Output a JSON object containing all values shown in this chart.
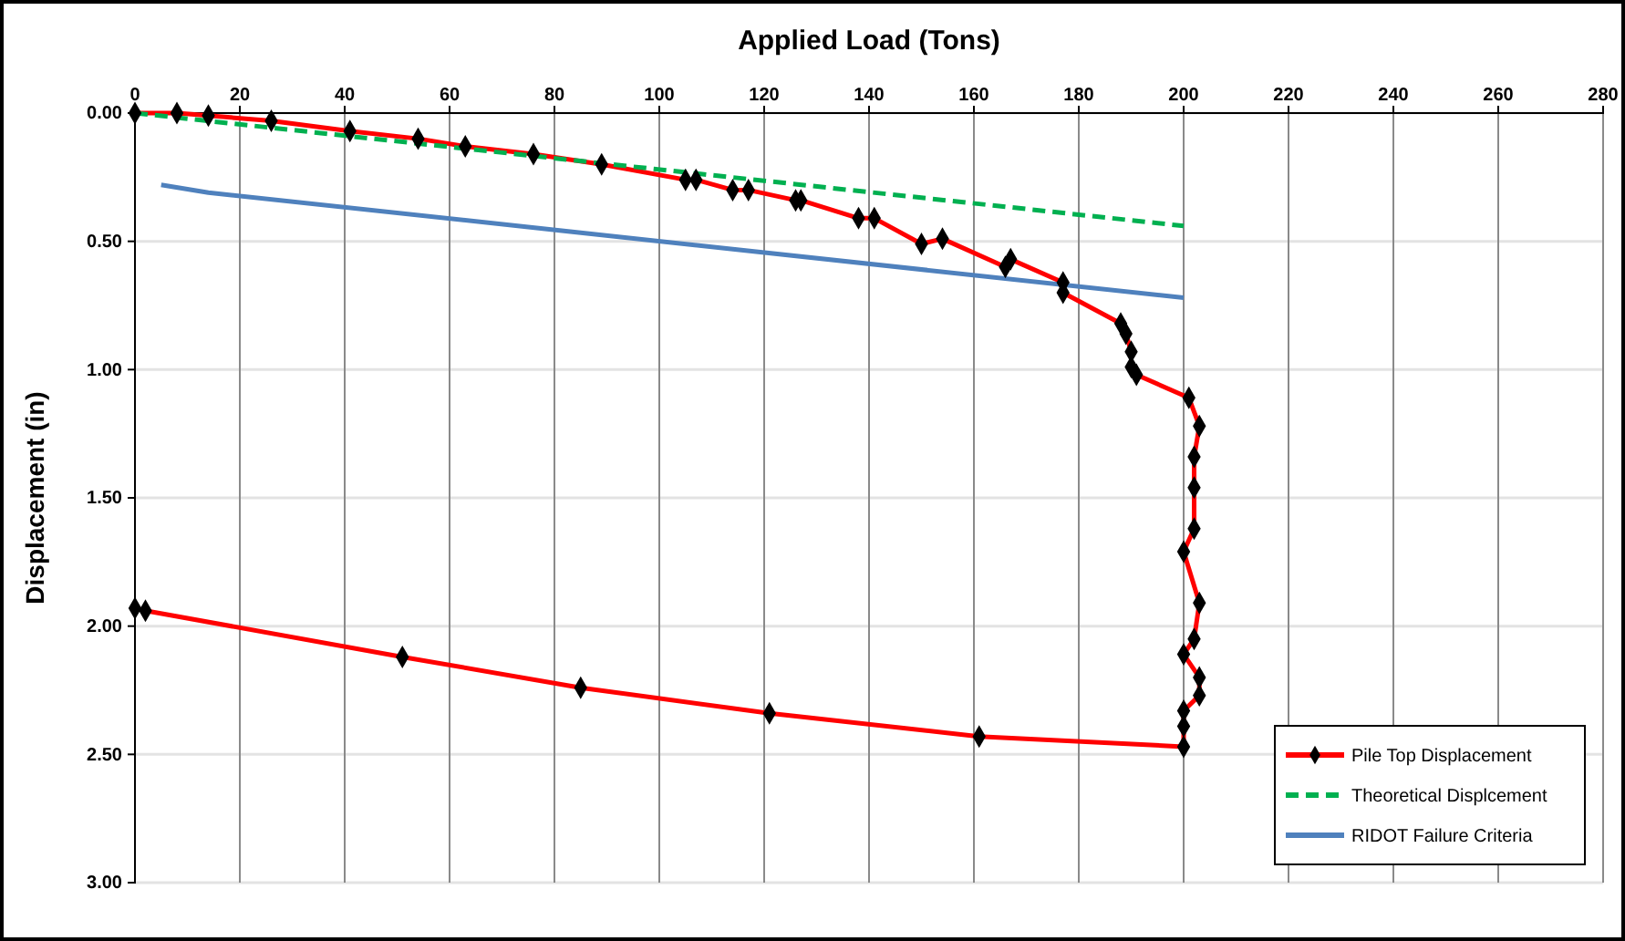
{
  "chart_data": {
    "type": "line",
    "xlabel": "Applied Load (Tons)",
    "ylabel": "Displacement (in)",
    "xlim": [
      0,
      280
    ],
    "xticks": [
      0,
      20,
      40,
      60,
      80,
      100,
      120,
      140,
      160,
      180,
      200,
      220,
      240,
      260,
      280
    ],
    "ylim": [
      3,
      0
    ],
    "yticks": [
      {
        "value": 0,
        "label": "0.00"
      },
      {
        "value": 0.5,
        "label": "0.50"
      },
      {
        "value": 1,
        "label": "1.00"
      },
      {
        "value": 1.5,
        "label": "1.50"
      },
      {
        "value": 2,
        "label": "2.00"
      },
      {
        "value": 2.5,
        "label": "2.50"
      },
      {
        "value": 3,
        "label": "3.00"
      }
    ],
    "grid": true,
    "legend": "bottom right",
    "series": [
      {
        "name": "Pile Top Displacement",
        "color": "#ff0000",
        "marker": "diamond",
        "x": [
          0,
          8,
          14,
          26,
          41,
          54,
          63,
          76,
          89,
          105,
          107,
          114,
          117,
          126,
          127,
          138,
          141,
          150,
          154,
          166,
          167,
          177,
          177,
          188,
          189,
          190,
          190,
          191,
          201,
          203,
          202,
          202,
          202,
          200,
          203,
          202,
          200,
          203,
          203,
          200,
          200,
          200,
          161,
          121,
          85,
          51,
          2,
          0
        ],
        "values": [
          0,
          0,
          0.01,
          0.03,
          0.07,
          0.1,
          0.13,
          0.16,
          0.2,
          0.26,
          0.26,
          0.3,
          0.3,
          0.34,
          0.34,
          0.41,
          0.41,
          0.51,
          0.49,
          0.6,
          0.57,
          0.66,
          0.7,
          0.82,
          0.86,
          0.93,
          0.99,
          1.02,
          1.11,
          1.22,
          1.34,
          1.46,
          1.62,
          1.71,
          1.91,
          2.05,
          2.11,
          2.2,
          2.27,
          2.33,
          2.39,
          2.47,
          2.43,
          2.34,
          2.24,
          2.12,
          1.94,
          1.93
        ]
      },
      {
        "name": "Theoretical Displcement",
        "color": "#00b050",
        "line_style": "dashed",
        "x": [
          0,
          200
        ],
        "values": [
          0,
          0.44
        ]
      },
      {
        "name": "RIDOT Failure Criteria",
        "color": "#4f81bd",
        "x": [
          5,
          14,
          200
        ],
        "values": [
          0.28,
          0.31,
          0.72
        ]
      }
    ]
  }
}
